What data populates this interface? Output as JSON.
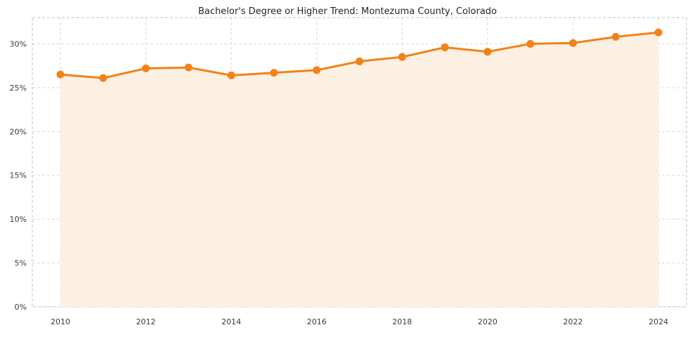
{
  "chart_data": {
    "type": "area",
    "title": "Bachelor's Degree or Higher Trend: Montezuma County, Colorado",
    "x": [
      2010,
      2011,
      2012,
      2013,
      2014,
      2015,
      2016,
      2017,
      2018,
      2019,
      2020,
      2021,
      2022,
      2023,
      2024
    ],
    "series": [
      {
        "name": "Bachelor's Degree or Higher %",
        "values": [
          26.5,
          26.1,
          27.2,
          27.3,
          26.4,
          26.7,
          27.0,
          28.0,
          28.5,
          29.6,
          29.1,
          30.0,
          30.1,
          30.8,
          31.3
        ]
      }
    ],
    "xlabel": "",
    "ylabel": "",
    "ylim": [
      0,
      33
    ],
    "yticks": [
      0,
      5,
      10,
      15,
      20,
      25,
      30
    ],
    "ytick_labels": [
      "0%",
      "5%",
      "10%",
      "15%",
      "20%",
      "25%",
      "30%"
    ],
    "xticks": [
      2010,
      2012,
      2014,
      2016,
      2018,
      2020,
      2022,
      2024
    ],
    "grid": "dashed, both axes",
    "legend_position": "none",
    "colors": {
      "line": "#f28118",
      "marker": "#f28118",
      "fill": "#fcf0e3",
      "grid": "#d9d9d9",
      "border": "#bfbfbf",
      "background": "#ffffff",
      "text": "#3a3a3a"
    }
  }
}
